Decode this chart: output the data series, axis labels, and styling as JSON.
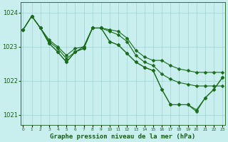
{
  "title": "Graphe pression niveau de la mer (hPa)",
  "xlabel_hours": [
    0,
    1,
    2,
    3,
    4,
    5,
    6,
    7,
    8,
    9,
    10,
    11,
    12,
    13,
    14,
    15,
    16,
    17,
    18,
    19,
    20,
    21,
    22,
    23
  ],
  "ylim": [
    1020.7,
    1024.3
  ],
  "yticks": [
    1021,
    1022,
    1023,
    1024
  ],
  "bg_color": "#c8eeee",
  "grid_color": "#a8d8d8",
  "line_color": "#1a6b1a",
  "marker_color": "#1a6b1a",
  "label_color": "#1a5a1a",
  "line_width": 0.8,
  "marker_size": 2.5,
  "series": [
    [
      1023.5,
      1023.9,
      1023.55,
      1023.2,
      1023.0,
      1022.75,
      1022.95,
      1023.0,
      1023.55,
      1023.55,
      1023.5,
      1023.45,
      1023.25,
      1022.9,
      1022.7,
      1022.6,
      1022.6,
      1022.45,
      1022.35,
      1022.3,
      1022.25,
      1022.25,
      1022.25,
      1022.25
    ],
    [
      1023.5,
      1023.9,
      1023.55,
      1023.15,
      1022.95,
      1022.65,
      1022.85,
      1023.0,
      1023.55,
      1023.55,
      1023.45,
      1023.35,
      1023.15,
      1022.75,
      1022.55,
      1022.45,
      1022.2,
      1022.05,
      1021.95,
      1021.9,
      1021.85,
      1021.85,
      1021.85,
      1021.85
    ],
    [
      1023.5,
      1023.9,
      1023.55,
      1023.1,
      1022.85,
      1022.55,
      1022.85,
      1022.95,
      1023.55,
      1023.55,
      1023.15,
      1023.05,
      1022.8,
      1022.55,
      1022.4,
      1022.3,
      1021.75,
      1021.3,
      1021.3,
      1021.3,
      1021.15,
      1021.5,
      1021.75,
      1022.1
    ],
    [
      1023.5,
      1023.9,
      1023.55,
      1023.1,
      1022.85,
      1022.55,
      1022.85,
      1022.95,
      1023.55,
      1023.55,
      1023.15,
      1023.05,
      1022.8,
      1022.55,
      1022.4,
      1022.3,
      1021.75,
      1021.3,
      1021.3,
      1021.3,
      1021.1,
      1021.5,
      1021.75,
      1022.1
    ]
  ]
}
